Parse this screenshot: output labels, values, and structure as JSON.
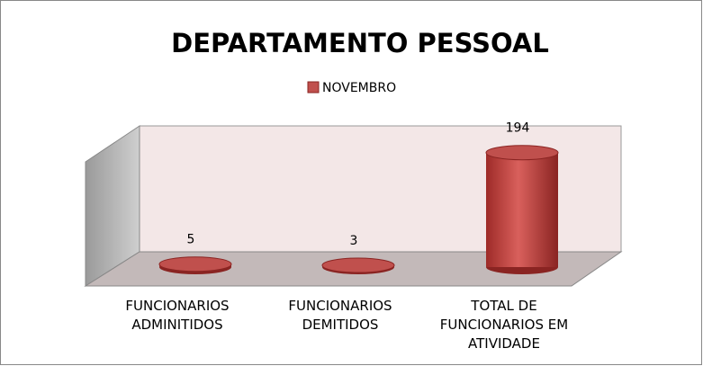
{
  "chart_data": {
    "type": "cylinder",
    "title": "DEPARTAMENTO PESSOAL",
    "categories": [
      "FUNCIONARIOS ADMINITIDOS",
      "FUNCIONARIOS DEMITIDOS",
      "TOTAL DE FUNCIONARIOS EM ATIVIDADE"
    ],
    "series": [
      {
        "name": "NOVEMBRO",
        "color": "#c0504d",
        "values": [
          5,
          3,
          194
        ]
      }
    ],
    "ylim": [
      0,
      250
    ]
  }
}
